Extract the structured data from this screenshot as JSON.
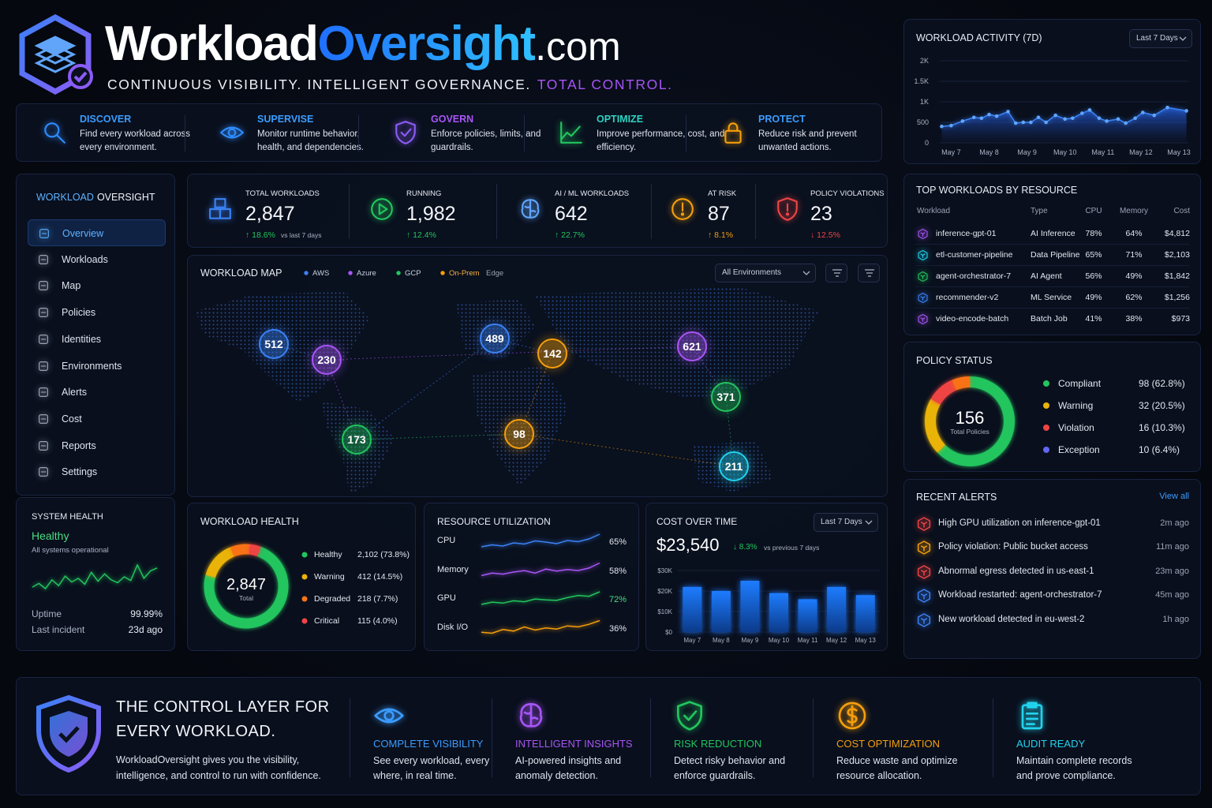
{
  "header": {
    "brand_a": "Workload",
    "brand_b": "Oversight",
    "brand_c": ".com",
    "tagline_a": "CONTINUOUS VISIBILITY. INTELLIGENT GOVERNANCE.",
    "tagline_b": "TOTAL CONTROL."
  },
  "pillars": [
    {
      "title": "DISCOVER",
      "text": "Find every workload across every environment.",
      "color": "#3b9cff"
    },
    {
      "title": "SUPERVISE",
      "text": "Monitor runtime behavior, health, and dependencies.",
      "color": "#3b9cff"
    },
    {
      "title": "GOVERN",
      "text": "Enforce policies, limits, and guardrails.",
      "color": "#a855f7"
    },
    {
      "title": "OPTIMIZE",
      "text": "Improve performance, cost, and efficiency.",
      "color": "#2dd4bf"
    },
    {
      "title": "PROTECT",
      "text": "Reduce risk and prevent unwanted actions.",
      "color": "#3b9cff"
    }
  ],
  "sidebar": {
    "title_a": "WORKLOAD",
    "title_b": "OVERSIGHT",
    "items": [
      "Overview",
      "Workloads",
      "Map",
      "Policies",
      "Identities",
      "Environments",
      "Alerts",
      "Cost",
      "Reports",
      "Settings"
    ],
    "active": 0
  },
  "system_health": {
    "title": "SYSTEM HEALTH",
    "status": "Healthy",
    "note": "All systems operational",
    "trend": [
      40,
      45,
      38,
      50,
      42,
      55,
      47,
      52,
      44,
      60,
      48,
      58,
      50,
      46,
      54,
      49,
      70,
      52,
      62,
      66
    ],
    "stats": [
      {
        "label": "Uptime",
        "value": "99.99%"
      },
      {
        "label": "Last incident",
        "value": "23d ago"
      }
    ]
  },
  "kpis": [
    {
      "label": "TOTAL WORKLOADS",
      "value": "2,847",
      "change": "↑ 18.6%",
      "note": "vs last 7 days",
      "color": "#22c55e"
    },
    {
      "label": "RUNNING",
      "value": "1,982",
      "change": "↑ 12.4%",
      "color": "#22c55e"
    },
    {
      "label": "AI / ML WORKLOADS",
      "value": "642",
      "change": "↑ 22.7%",
      "color": "#22c55e"
    },
    {
      "label": "AT RISK",
      "value": "87",
      "change": "↑ 8.1%",
      "color": "#f59e0b"
    },
    {
      "label": "POLICY VIOLATIONS",
      "value": "23",
      "change": "↓ 12.5%",
      "color": "#ef4444"
    }
  ],
  "map": {
    "title": "WORKLOAD MAP",
    "legend": [
      {
        "name": "AWS",
        "color": "#3b82f6"
      },
      {
        "name": "Azure",
        "color": "#a855f7"
      },
      {
        "name": "GCP",
        "color": "#22c55e"
      },
      {
        "name": "On-Prem",
        "color": "#f59e0b"
      },
      {
        "name": "Edge"
      }
    ],
    "filter": "All Environments",
    "clusters": [
      {
        "value": "512",
        "color": "#3b82f6"
      },
      {
        "value": "230",
        "color": "#a855f7"
      },
      {
        "value": "489",
        "color": "#3b82f6"
      },
      {
        "value": "142",
        "color": "#f59e0b"
      },
      {
        "value": "621",
        "color": "#a855f7"
      },
      {
        "value": "371",
        "color": "#22c55e"
      },
      {
        "value": "173",
        "color": "#22c55e"
      },
      {
        "value": "98",
        "color": "#f59e0b"
      },
      {
        "value": "211",
        "color": "#22d3ee"
      }
    ]
  },
  "top_workloads": {
    "title": "TOP WORKLOADS BY RESOURCE",
    "columns": [
      "Workload",
      "Type",
      "CPU",
      "Memory",
      "Cost"
    ],
    "rows": [
      [
        "inference-gpt-01",
        "AI Inference",
        "78%",
        "64%",
        "$4,812"
      ],
      [
        "etl-customer-pipeline",
        "Data Pipeline",
        "65%",
        "71%",
        "$2,103"
      ],
      [
        "agent-orchestrator-7",
        "AI Agent",
        "56%",
        "49%",
        "$1,842"
      ],
      [
        "recommender-v2",
        "ML Service",
        "49%",
        "62%",
        "$1,256"
      ],
      [
        "video-encode-batch",
        "Batch Job",
        "41%",
        "38%",
        "$973"
      ]
    ],
    "icon_colors": [
      "#a855f7",
      "#22d3ee",
      "#22c55e",
      "#3b82f6",
      "#a855f7"
    ]
  },
  "alerts": {
    "title": "RECENT ALERTS",
    "action": "View all",
    "items": [
      {
        "text": "High GPU utilization on inference-gpt-01",
        "time": "2m ago",
        "color": "#ef4444"
      },
      {
        "text": "Policy violation: Public bucket access",
        "time": "11m ago",
        "color": "#f59e0b"
      },
      {
        "text": "Abnormal egress detected in us-east-1",
        "time": "23m ago",
        "color": "#ef4444"
      },
      {
        "text": "Workload restarted: agent-orchestrator-7",
        "time": "45m ago",
        "color": "#3b82f6"
      },
      {
        "text": "New workload detected in eu-west-2",
        "time": "1h ago",
        "color": "#3b82f6"
      }
    ]
  },
  "resource_utilization": {
    "title": "RESOURCE UTILIZATION",
    "rows": [
      {
        "name": "CPU",
        "value": "65%",
        "color": "#3b82f6",
        "trend": [
          40,
          45,
          42,
          50,
          47,
          55,
          52,
          48,
          56,
          53,
          60,
          72
        ]
      },
      {
        "name": "Memory",
        "value": "58%",
        "color": "#a855f7",
        "trend": [
          45,
          50,
          48,
          52,
          55,
          50,
          58,
          54,
          57,
          55,
          60,
          70
        ]
      },
      {
        "name": "GPU",
        "value": "72%",
        "color": "#22c55e",
        "trend": [
          40,
          45,
          43,
          48,
          46,
          52,
          50,
          49,
          55,
          60,
          58,
          68
        ]
      },
      {
        "name": "Disk I/O",
        "value": "36%",
        "color": "#f59e0b",
        "trend": [
          40,
          38,
          45,
          42,
          50,
          44,
          48,
          46,
          52,
          50,
          55,
          62
        ]
      }
    ]
  },
  "chart_data": [
    {
      "type": "line",
      "title": "WORKLOAD ACTIVITY (7D)",
      "range": "Last 7 Days",
      "color": "#3b82f6",
      "x": [
        6.75,
        7.0,
        7.3,
        7.6,
        7.8,
        8.0,
        8.2,
        8.5,
        8.7,
        8.9,
        9.1,
        9.3,
        9.5,
        9.75,
        10.0,
        10.2,
        10.45,
        10.65,
        10.9,
        11.1,
        11.4,
        11.6,
        11.85,
        12.05,
        12.35,
        12.7,
        13.2
      ],
      "values": [
        400,
        420,
        530,
        620,
        600,
        690,
        650,
        760,
        480,
        500,
        500,
        620,
        500,
        670,
        580,
        600,
        720,
        800,
        600,
        530,
        580,
        480,
        600,
        740,
        670,
        860,
        780
      ],
      "xlim": [
        6.7,
        13.25
      ],
      "xticks": [
        {
          "value": 7,
          "label": "May 7"
        },
        {
          "value": 8,
          "label": "May 8"
        },
        {
          "value": 9,
          "label": "May 9"
        },
        {
          "value": 10,
          "label": "May 10"
        },
        {
          "value": 11,
          "label": "May 11"
        },
        {
          "value": 12,
          "label": "May 12"
        },
        {
          "value": 13,
          "label": "May 13"
        }
      ],
      "ylim": [
        0,
        2000
      ],
      "yticks": [
        0,
        500,
        {
          "value": 1000,
          "label": "1K"
        },
        {
          "value": 1500,
          "label": "1.5K"
        },
        {
          "value": 2000,
          "label": "2K"
        }
      ],
      "grid": true
    },
    {
      "type": "pie",
      "title": "WORKLOAD HEALTH",
      "categories": [
        "Healthy",
        "Warning",
        "Degraded",
        "Critical"
      ],
      "values": [
        2102,
        412,
        218,
        115
      ],
      "value_labels": [
        "2,102 (73.8%)",
        "412 (14.5%)",
        "218 (7.7%)",
        "115 (4.0%)"
      ],
      "colors": [
        "#22c55e",
        "#eab308",
        "#f97316",
        "#ef4444"
      ],
      "center_value": "2,847",
      "center_label": "Total"
    },
    {
      "type": "pie",
      "title": "POLICY STATUS",
      "categories": [
        "Compliant",
        "Warning",
        "Violation",
        "Exception"
      ],
      "values": [
        98,
        32,
        16,
        10
      ],
      "value_labels": [
        "98 (62.8%)",
        "32 (20.5%)",
        "16 (10.3%)",
        "10 (6.4%)"
      ],
      "colors": [
        "#22c55e",
        "#eab308",
        "#ef4444",
        "#f97316"
      ],
      "legend_colors": [
        "#22c55e",
        "#eab308",
        "#ef4444",
        "#6366f1"
      ],
      "center_value": "156",
      "center_label": "Total Policies"
    },
    {
      "type": "bar",
      "title": "COST OVER TIME",
      "range": "Last 7 Days",
      "total": "$23,540",
      "change": "↓ 8.3%",
      "note": "vs previous 7 days",
      "color": "#1d6fe8",
      "categories": [
        "May 7",
        "May 8",
        "May 9",
        "May 10",
        "May 11",
        "May 12",
        "May 13"
      ],
      "values": [
        22000,
        20000,
        25000,
        19000,
        16000,
        22000,
        18000
      ],
      "ylim": [
        0,
        30000
      ],
      "yticks": [
        {
          "value": 0,
          "label": "$0"
        },
        {
          "value": 10000,
          "label": "$10K"
        },
        {
          "value": 20000,
          "label": "$20K"
        },
        {
          "value": 30000,
          "label": "$30K"
        }
      ]
    }
  ],
  "footer": {
    "title_a": "THE CONTROL LAYER FOR",
    "title_b": "EVERY WORKLOAD.",
    "text": "WorkloadOversight gives you the visibility, intelligence, and control to run with confidence.",
    "features": [
      {
        "title": "COMPLETE VISIBILITY",
        "text": "See every workload, every where, in real time.",
        "color": "#3b9cff"
      },
      {
        "title": "INTELLIGENT INSIGHTS",
        "text": "AI-powered insights and anomaly detection.",
        "color": "#a855f7"
      },
      {
        "title": "RISK REDUCTION",
        "text": "Detect risky behavior and enforce guardrails.",
        "color": "#22c55e"
      },
      {
        "title": "COST OPTIMIZATION",
        "text": "Reduce waste and optimize resource allocation.",
        "color": "#f59e0b"
      },
      {
        "title": "AUDIT READY",
        "text": "Maintain complete records and prove compliance.",
        "color": "#22d3ee"
      }
    ]
  }
}
